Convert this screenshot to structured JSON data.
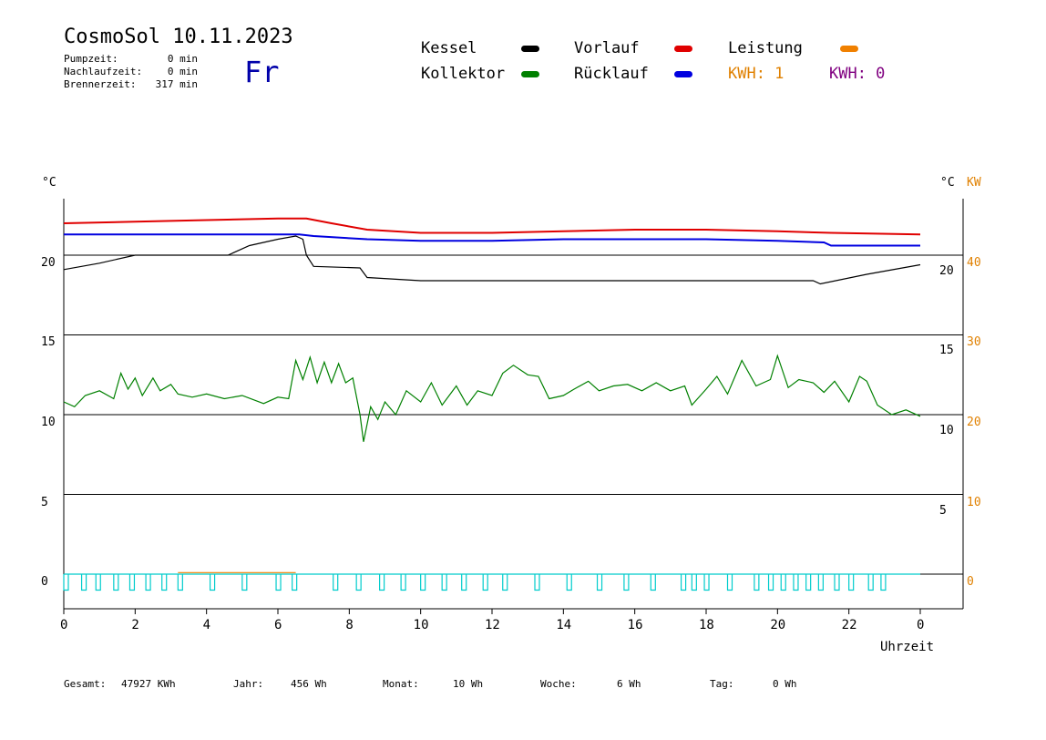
{
  "header": {
    "title": "CosmoSol 10.11.2023",
    "weekday": "Fr",
    "stats": [
      {
        "label": "Pumpzeit:",
        "value": "0 min"
      },
      {
        "label": "Nachlaufzeit:",
        "value": "0 min"
      },
      {
        "label": "Brennerzeit:",
        "value": "317 min"
      }
    ]
  },
  "legend": {
    "items": [
      {
        "label": "Kessel",
        "color": "#000000"
      },
      {
        "label": "Vorlauf",
        "color": "#e00000"
      },
      {
        "label": "Leistung",
        "color": "#f08000"
      },
      {
        "label": "Kollektor",
        "color": "#008000"
      },
      {
        "label": "Rücklauf",
        "color": "#0000e0"
      }
    ],
    "kwh1": "KWH: 1",
    "kwh1_color": "#e08000",
    "kwh2": "KWH: 0",
    "kwh2_color": "#800080"
  },
  "axes": {
    "left_unit": "°C",
    "right_unit": "°C",
    "right_unit2": "KW",
    "xlabel": "Uhrzeit"
  },
  "footer": [
    {
      "label": "Gesamt:",
      "value": "47927 KWh"
    },
    {
      "label": "Jahr:",
      "value": "456 Wh"
    },
    {
      "label": "Monat:",
      "value": "10 Wh"
    },
    {
      "label": "Woche:",
      "value": "6 Wh"
    },
    {
      "label": "Tag:",
      "value": "0 Wh"
    }
  ],
  "chart_data": {
    "type": "line",
    "x_ticks": [
      "0",
      "2",
      "4",
      "6",
      "8",
      "10",
      "12",
      "14",
      "16",
      "18",
      "20",
      "22",
      "0"
    ],
    "y_left_ticks": [
      "20",
      "15",
      "10",
      "5",
      "0"
    ],
    "y_right_ticks": [
      "20",
      "15",
      "10",
      "5"
    ],
    "y_right2_ticks": [
      "40",
      "30",
      "20",
      "10",
      "0"
    ],
    "xlim": [
      0,
      24
    ],
    "ylim": [
      -2,
      25
    ],
    "grid": "horizontal",
    "series": [
      {
        "name": "Vorlauf",
        "color": "#e00000",
        "points": [
          [
            0,
            22.0
          ],
          [
            2,
            22.1
          ],
          [
            4,
            22.2
          ],
          [
            6,
            22.3
          ],
          [
            6.8,
            22.3
          ],
          [
            7.5,
            22.0
          ],
          [
            8.5,
            21.6
          ],
          [
            10,
            21.4
          ],
          [
            12,
            21.4
          ],
          [
            14,
            21.5
          ],
          [
            16,
            21.6
          ],
          [
            18,
            21.6
          ],
          [
            20,
            21.5
          ],
          [
            21.5,
            21.4
          ],
          [
            24,
            21.3
          ]
        ]
      },
      {
        "name": "Rücklauf",
        "color": "#0000e0",
        "points": [
          [
            0,
            21.3
          ],
          [
            2,
            21.3
          ],
          [
            4,
            21.3
          ],
          [
            6,
            21.3
          ],
          [
            6.6,
            21.3
          ],
          [
            7,
            21.2
          ],
          [
            8.5,
            21.0
          ],
          [
            10,
            20.9
          ],
          [
            12,
            20.9
          ],
          [
            14,
            21.0
          ],
          [
            16,
            21.0
          ],
          [
            18,
            21.0
          ],
          [
            20,
            20.9
          ],
          [
            21.3,
            20.8
          ],
          [
            21.5,
            20.6
          ],
          [
            24,
            20.6
          ]
        ]
      },
      {
        "name": "Kessel",
        "color": "#000000",
        "points": [
          [
            0,
            19.1
          ],
          [
            1,
            19.5
          ],
          [
            2,
            20.0
          ],
          [
            4.6,
            20.0
          ],
          [
            5.2,
            20.6
          ],
          [
            6,
            21.0
          ],
          [
            6.5,
            21.2
          ],
          [
            6.7,
            21.0
          ],
          [
            6.8,
            20.0
          ],
          [
            7.0,
            19.3
          ],
          [
            8.3,
            19.2
          ],
          [
            8.5,
            18.6
          ],
          [
            10,
            18.4
          ],
          [
            21,
            18.4
          ],
          [
            21.2,
            18.2
          ],
          [
            22.5,
            18.8
          ],
          [
            24,
            19.4
          ]
        ]
      },
      {
        "name": "Kollektor",
        "color": "#008000",
        "points": [
          [
            0,
            10.8
          ],
          [
            0.3,
            10.5
          ],
          [
            0.6,
            11.2
          ],
          [
            1,
            11.5
          ],
          [
            1.4,
            11.0
          ],
          [
            1.6,
            12.6
          ],
          [
            1.8,
            11.6
          ],
          [
            2.0,
            12.3
          ],
          [
            2.2,
            11.2
          ],
          [
            2.5,
            12.3
          ],
          [
            2.7,
            11.5
          ],
          [
            3.0,
            11.9
          ],
          [
            3.2,
            11.3
          ],
          [
            3.6,
            11.1
          ],
          [
            4.0,
            11.3
          ],
          [
            4.5,
            11.0
          ],
          [
            5.0,
            11.2
          ],
          [
            5.6,
            10.7
          ],
          [
            6.0,
            11.1
          ],
          [
            6.3,
            11.0
          ],
          [
            6.5,
            13.4
          ],
          [
            6.7,
            12.2
          ],
          [
            6.9,
            13.6
          ],
          [
            7.1,
            12.0
          ],
          [
            7.3,
            13.3
          ],
          [
            7.5,
            12.0
          ],
          [
            7.7,
            13.2
          ],
          [
            7.9,
            12.0
          ],
          [
            8.1,
            12.3
          ],
          [
            8.3,
            10.0
          ],
          [
            8.4,
            8.3
          ],
          [
            8.6,
            10.5
          ],
          [
            8.8,
            9.7
          ],
          [
            9.0,
            10.8
          ],
          [
            9.3,
            10.0
          ],
          [
            9.6,
            11.5
          ],
          [
            10.0,
            10.8
          ],
          [
            10.3,
            12.0
          ],
          [
            10.6,
            10.6
          ],
          [
            11.0,
            11.8
          ],
          [
            11.3,
            10.6
          ],
          [
            11.6,
            11.5
          ],
          [
            12.0,
            11.2
          ],
          [
            12.3,
            12.6
          ],
          [
            12.6,
            13.1
          ],
          [
            13.0,
            12.5
          ],
          [
            13.3,
            12.4
          ],
          [
            13.6,
            11.0
          ],
          [
            14.0,
            11.2
          ],
          [
            14.3,
            11.6
          ],
          [
            14.7,
            12.1
          ],
          [
            15.0,
            11.5
          ],
          [
            15.4,
            11.8
          ],
          [
            15.8,
            11.9
          ],
          [
            16.2,
            11.5
          ],
          [
            16.6,
            12.0
          ],
          [
            17.0,
            11.5
          ],
          [
            17.4,
            11.8
          ],
          [
            17.6,
            10.6
          ],
          [
            18.0,
            11.6
          ],
          [
            18.3,
            12.4
          ],
          [
            18.6,
            11.3
          ],
          [
            19.0,
            13.4
          ],
          [
            19.4,
            11.8
          ],
          [
            19.8,
            12.2
          ],
          [
            20.0,
            13.7
          ],
          [
            20.3,
            11.7
          ],
          [
            20.6,
            12.2
          ],
          [
            21.0,
            12.0
          ],
          [
            21.3,
            11.4
          ],
          [
            21.6,
            12.1
          ],
          [
            22.0,
            10.8
          ],
          [
            22.3,
            12.4
          ],
          [
            22.5,
            12.1
          ],
          [
            22.8,
            10.6
          ],
          [
            23.2,
            10.0
          ],
          [
            23.6,
            10.3
          ],
          [
            24.0,
            9.9
          ]
        ]
      },
      {
        "name": "Leistung",
        "color": "#f08000",
        "points": [
          [
            3.2,
            0.1
          ],
          [
            6.5,
            0.1
          ]
        ]
      }
    ],
    "burner_pulses_hours": [
      0.0,
      0.5,
      0.9,
      1.4,
      1.85,
      2.3,
      2.75,
      3.2,
      4.1,
      5.0,
      5.95,
      6.4,
      7.55,
      8.2,
      8.85,
      9.45,
      10.0,
      10.6,
      11.15,
      11.75,
      12.3,
      13.2,
      14.1,
      14.95,
      15.7,
      16.45,
      17.3,
      17.6,
      17.95,
      18.6,
      19.35,
      19.75,
      20.1,
      20.45,
      20.8,
      21.15,
      21.6,
      22.0,
      22.55,
      22.9
    ]
  }
}
